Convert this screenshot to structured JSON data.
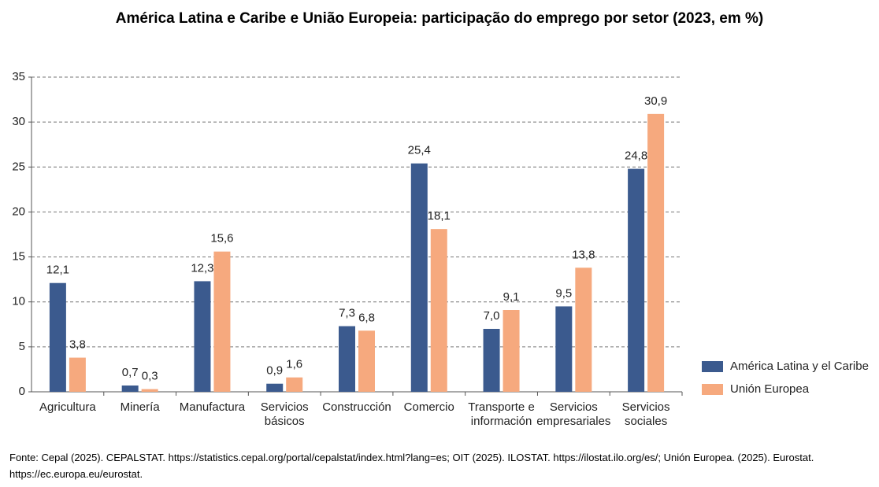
{
  "chart_data": {
    "type": "bar",
    "title": "América Latina e Caribe e União Europeia: participação do emprego por setor (2023, em %)",
    "categories": [
      [
        "Agricultura"
      ],
      [
        "Minería"
      ],
      [
        "Manufactura"
      ],
      [
        "Servicios",
        "básicos"
      ],
      [
        "Construcción"
      ],
      [
        "Comercio"
      ],
      [
        "Transporte e",
        "información"
      ],
      [
        "Servicios",
        "empresariales"
      ],
      [
        "Servicios",
        "sociales"
      ]
    ],
    "series": [
      {
        "name": "América Latina y el Caribe",
        "color": "#3b5a8e",
        "values": [
          12.1,
          0.7,
          12.3,
          0.9,
          7.3,
          25.4,
          7.0,
          9.5,
          24.8
        ],
        "value_labels": [
          "12,1",
          "0,7",
          "12,3",
          "0,9",
          "7,3",
          "25,4",
          "7,0",
          "9,5",
          "24,8"
        ]
      },
      {
        "name": "Unión Europea",
        "color": "#f6a97e",
        "values": [
          3.8,
          0.3,
          15.6,
          1.6,
          6.8,
          18.1,
          9.1,
          13.8,
          30.9
        ],
        "value_labels": [
          "3,8",
          "0,3",
          "15,6",
          "1,6",
          "6,8",
          "18,1",
          "9,1",
          "13,8",
          "30,9"
        ]
      }
    ],
    "ylim": [
      0,
      35
    ],
    "yticks": [
      0,
      5,
      10,
      15,
      20,
      25,
      30,
      35
    ],
    "grid": true,
    "legend": "right",
    "source": "Fonte: Cepal (2025). CEPALSTAT. https://statistics.cepal.org/portal/cepalstat/index.html?lang=es; OIT (2025). ILOSTAT. https://ilostat.ilo.org/es/; Unión Europea. (2025). Eurostat. https://ec.europa.eu/eurostat."
  }
}
